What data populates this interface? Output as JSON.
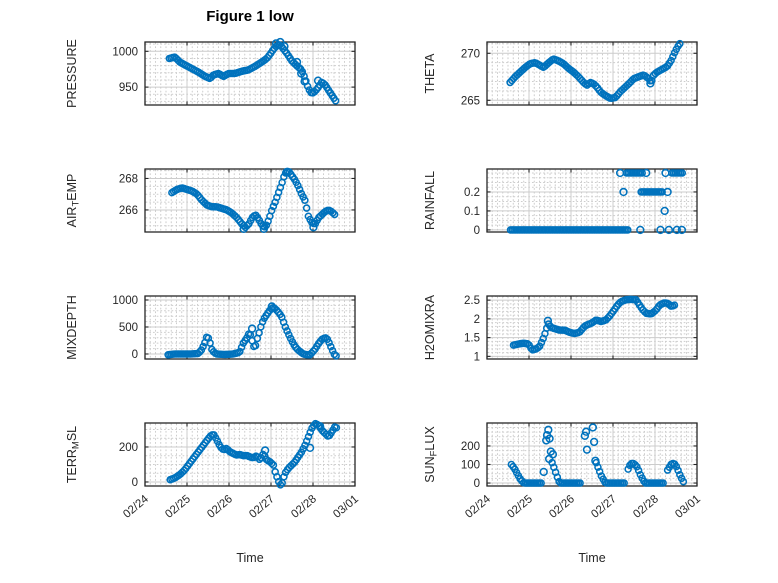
{
  "title": "Figure 1 low",
  "time_axis_label": "Time",
  "marker": {
    "shape": "circle-outline",
    "color": "#0072BD"
  },
  "grid": {
    "major_color": "#cccccc",
    "minor_color": "#cccccc",
    "axis_color": "#262626"
  },
  "x_axis": {
    "tick_labels": [
      "02/24",
      "02/25",
      "02/26",
      "02/27",
      "02/28",
      "03/01"
    ],
    "tick_days": [
      0,
      1,
      2,
      3,
      4,
      5
    ],
    "range_days": [
      0,
      5
    ],
    "minor_step_days": 0.125,
    "label": "Time"
  },
  "chart_data": [
    {
      "type": "scatter",
      "name": "PRESSURE",
      "col": 0,
      "row": 0,
      "label_parts": [
        {
          "t": "PRESSURE"
        }
      ],
      "ylim": [
        925,
        1013
      ],
      "yminor_step": 10,
      "yticks": [
        {
          "v": 950,
          "label": "950"
        },
        {
          "v": 1000,
          "label": "1000"
        }
      ],
      "segments": [
        {
          "x": [
            0.58,
            0.71,
            0.83,
            0.95,
            1.11,
            1.27,
            1.43,
            1.55,
            1.63,
            1.75,
            1.87,
            1.99,
            2.14,
            2.3,
            2.46,
            2.62,
            2.78,
            2.9,
            2.98,
            3.06,
            3.14,
            3.22,
            3.3,
            3.38,
            3.49,
            3.61,
            3.73,
            3.81,
            3.89,
            3.97,
            4.05,
            4.13,
            4.21,
            4.29,
            4.4,
            4.48,
            4.56
          ],
          "y": [
            990,
            992,
            985,
            981,
            976,
            971,
            965,
            962,
            967,
            969,
            965,
            969,
            969,
            972,
            974,
            979,
            985,
            990,
            996,
            1003,
            1008,
            1009,
            1003,
            997,
            987,
            980,
            974,
            962,
            948,
            941,
            944,
            950,
            957,
            953,
            943,
            936,
            929
          ]
        }
      ],
      "extra_points": [
        [
          3.12,
          1011
        ],
        [
          3.22,
          1013
        ],
        [
          3.32,
          1007
        ],
        [
          3.62,
          985
        ],
        [
          3.72,
          969
        ],
        [
          3.8,
          958
        ],
        [
          4.12,
          959
        ]
      ]
    },
    {
      "type": "scatter",
      "name": "THETA",
      "col": 1,
      "row": 0,
      "label_parts": [
        {
          "t": "THETA"
        }
      ],
      "ylim": [
        264.5,
        271.2
      ],
      "yminor_step": 1,
      "yticks": [
        {
          "v": 265,
          "label": "265"
        },
        {
          "v": 270,
          "label": "270"
        }
      ],
      "segments": [
        {
          "x": [
            0.55,
            0.67,
            0.79,
            0.91,
            1.03,
            1.15,
            1.27,
            1.35,
            1.47,
            1.58,
            1.7,
            1.82,
            1.94,
            2.06,
            2.18,
            2.3,
            2.38,
            2.46,
            2.54,
            2.62,
            2.7,
            2.82,
            2.94,
            3.06,
            3.17,
            3.29,
            3.41,
            3.49,
            3.61,
            3.73,
            3.85,
            3.91,
            3.97,
            4.05,
            4.17,
            4.29,
            4.38,
            4.46,
            4.54,
            4.62
          ],
          "y": [
            266.9,
            267.5,
            268.0,
            268.5,
            268.9,
            269.0,
            268.7,
            268.5,
            269.0,
            269.4,
            269.2,
            268.9,
            268.4,
            268.0,
            267.5,
            266.9,
            266.6,
            266.9,
            266.75,
            266.4,
            265.9,
            265.5,
            265.2,
            265.3,
            265.9,
            266.4,
            266.9,
            267.3,
            267.5,
            267.7,
            267.3,
            266.9,
            267.7,
            268.0,
            268.3,
            268.6,
            269.2,
            270.0,
            270.7,
            271.2
          ]
        }
      ],
      "extra_points": [
        [
          3.89,
          266.8
        ]
      ]
    },
    {
      "type": "scatter",
      "name": "AIR_TEMP",
      "col": 0,
      "row": 1,
      "label_parts": [
        {
          "t": "AIR"
        },
        {
          "t": "T",
          "sub": true
        },
        {
          "t": "EMP"
        }
      ],
      "ylim": [
        264.6,
        268.6
      ],
      "yminor_step": 0.5,
      "yticks": [
        {
          "v": 266,
          "label": "266"
        },
        {
          "v": 268,
          "label": "268"
        }
      ],
      "segments": [
        {
          "x": [
            0.64,
            0.76,
            0.88,
            1.0,
            1.12,
            1.24,
            1.36,
            1.48,
            1.6,
            1.71,
            1.83,
            1.95,
            2.07,
            2.19,
            2.31,
            2.39,
            2.47,
            2.55,
            2.63,
            2.71,
            2.79,
            2.87,
            2.95,
            3.02,
            3.1,
            3.18,
            3.26,
            3.33,
            3.41,
            3.49,
            3.57,
            3.65,
            3.73,
            3.81,
            3.89,
            3.97,
            4.05,
            4.13,
            4.21,
            4.29,
            4.37,
            4.44,
            4.52
          ],
          "y": [
            267.1,
            267.3,
            267.4,
            267.3,
            267.2,
            267.0,
            266.6,
            266.3,
            266.2,
            266.2,
            266.1,
            266.0,
            265.8,
            265.5,
            265.1,
            264.9,
            265.1,
            265.5,
            265.7,
            265.4,
            265.0,
            264.9,
            265.4,
            266.0,
            266.5,
            267.1,
            267.7,
            268.3,
            268.5,
            268.2,
            267.9,
            267.5,
            267.0,
            266.6,
            265.6,
            265.2,
            265.1,
            265.5,
            265.7,
            265.9,
            266.0,
            265.9,
            265.7
          ]
        }
      ],
      "extra_points": [
        [
          2.35,
          264.8
        ],
        [
          2.83,
          264.8
        ],
        [
          3.37,
          268.4
        ],
        [
          4.01,
          264.9
        ]
      ]
    },
    {
      "type": "scatter",
      "name": "RAINFALL",
      "col": 1,
      "row": 1,
      "label_parts": [
        {
          "t": "RAINFALL"
        }
      ],
      "ylim": [
        -0.011,
        0.321
      ],
      "yminor_step": 0.025,
      "yticks": [
        {
          "v": 0,
          "label": "0"
        },
        {
          "v": 0.1,
          "label": "0.1"
        },
        {
          "v": 0.2,
          "label": "0.2"
        }
      ],
      "segments": [
        {
          "x": [
            0.56,
            3.37
          ],
          "y": [
            0,
            0
          ]
        },
        {
          "x": [
            3.32,
            3.73
          ],
          "y": [
            0.3,
            0.3
          ]
        },
        {
          "x": [
            4.4,
            4.66
          ],
          "y": [
            0.3,
            0.3
          ]
        },
        {
          "x": [
            3.67,
            4.19
          ],
          "y": [
            0.2,
            0.2
          ]
        }
      ],
      "extra_points": [
        [
          3.17,
          0.3
        ],
        [
          3.79,
          0.3
        ],
        [
          4.25,
          0.3
        ],
        [
          3.25,
          0.2
        ],
        [
          4.3,
          0.2
        ],
        [
          4.23,
          0.1
        ],
        [
          3.65,
          0
        ],
        [
          4.13,
          0
        ],
        [
          4.33,
          0
        ],
        [
          4.52,
          0
        ],
        [
          4.64,
          0
        ]
      ]
    },
    {
      "type": "scatter",
      "name": "MIXDEPTH",
      "col": 0,
      "row": 2,
      "label_parts": [
        {
          "t": "MIXDEPTH"
        }
      ],
      "ylim": [
        -93,
        1074
      ],
      "yminor_step": 100,
      "yticks": [
        {
          "v": 0,
          "label": "0"
        },
        {
          "v": 500,
          "label": "500"
        },
        {
          "v": 1000,
          "label": "1000"
        }
      ],
      "segments": [
        {
          "x": [
            0.55,
            0.7,
            0.9,
            1.1,
            1.27,
            1.35,
            1.42,
            1.48,
            1.53,
            1.6,
            1.7,
            1.9,
            2.1,
            2.25,
            2.34,
            2.42,
            2.48,
            2.52,
            2.58,
            2.62,
            2.66,
            2.72,
            2.78,
            2.83,
            2.9,
            2.96,
            3.04,
            3.1,
            3.17,
            3.25,
            3.33,
            3.41,
            3.49,
            3.57,
            3.65,
            3.77,
            3.85,
            3.93,
            4.05,
            4.13,
            4.21,
            4.29,
            4.33,
            4.39,
            4.45,
            4.51,
            4.56
          ],
          "y": [
            -15,
            0,
            0,
            0,
            10,
            80,
            200,
            340,
            260,
            60,
            0,
            -10,
            0,
            30,
            200,
            290,
            390,
            340,
            150,
            110,
            250,
            400,
            560,
            650,
            730,
            800,
            860,
            840,
            780,
            700,
            520,
            380,
            250,
            140,
            70,
            0,
            -15,
            -15,
            90,
            190,
            270,
            300,
            290,
            200,
            90,
            -10,
            -40
          ]
        }
      ],
      "extra_points": [
        [
          2.55,
          470
        ],
        [
          3.02,
          880
        ]
      ]
    },
    {
      "type": "scatter",
      "name": "H2OMIXRA",
      "col": 1,
      "row": 2,
      "label_parts": [
        {
          "t": "H2OMIXRA"
        }
      ],
      "ylim": [
        0.93,
        2.61
      ],
      "yminor_step": 0.1,
      "yticks": [
        {
          "v": 1,
          "label": "1"
        },
        {
          "v": 1.5,
          "label": "1.5"
        },
        {
          "v": 2,
          "label": "2"
        },
        {
          "v": 2.5,
          "label": "2.5"
        }
      ],
      "segments": [
        {
          "x": [
            0.63,
            0.75,
            0.87,
            0.99,
            1.07,
            1.17,
            1.25,
            1.33,
            1.41,
            1.45,
            1.53,
            1.61,
            1.73,
            1.85,
            1.97,
            2.08,
            2.2,
            2.32,
            2.4,
            2.48,
            2.6,
            2.72,
            2.83,
            2.91,
            3.03,
            3.11,
            3.19,
            3.31,
            3.43,
            3.55,
            3.63,
            3.71,
            3.79,
            3.91,
            4.03,
            4.11,
            4.23,
            4.31,
            4.39,
            4.47
          ],
          "y": [
            1.3,
            1.33,
            1.35,
            1.33,
            1.17,
            1.2,
            1.26,
            1.45,
            1.7,
            1.88,
            1.77,
            1.74,
            1.7,
            1.7,
            1.64,
            1.61,
            1.64,
            1.8,
            1.85,
            1.88,
            1.97,
            1.93,
            1.97,
            2.06,
            2.24,
            2.37,
            2.46,
            2.51,
            2.52,
            2.51,
            2.37,
            2.24,
            2.15,
            2.13,
            2.24,
            2.37,
            2.43,
            2.41,
            2.33,
            2.37
          ]
        }
      ],
      "extra_points": [
        [
          1.45,
          1.95
        ]
      ]
    },
    {
      "type": "scatter",
      "name": "TERR_MSL",
      "col": 0,
      "row": 3,
      "label_parts": [
        {
          "t": "TERR"
        },
        {
          "t": "M",
          "sub": true
        },
        {
          "t": "SL"
        }
      ],
      "ylim": [
        -23,
        337
      ],
      "yminor_step": 50,
      "yticks": [
        {
          "v": 0,
          "label": "0"
        },
        {
          "v": 200,
          "label": "200"
        }
      ],
      "segments": [
        {
          "x": [
            0.6,
            0.71,
            0.83,
            0.95,
            1.07,
            1.19,
            1.31,
            1.43,
            1.55,
            1.63,
            1.71,
            1.79,
            1.87,
            1.94,
            2.02,
            2.1,
            2.18,
            2.26,
            2.34,
            2.42,
            2.5,
            2.58,
            2.66,
            2.74,
            2.82,
            2.9,
            2.98,
            3.06,
            3.1,
            3.17,
            3.21,
            3.25,
            3.33,
            3.41,
            3.49,
            3.57,
            3.65,
            3.73,
            3.81,
            3.89,
            3.97,
            4.05,
            4.13,
            4.21,
            4.29,
            4.37,
            4.45,
            4.52,
            4.59
          ],
          "y": [
            13,
            23,
            42,
            70,
            109,
            147,
            185,
            223,
            261,
            274,
            240,
            202,
            183,
            192,
            173,
            163,
            154,
            157,
            150,
            152,
            143,
            138,
            150,
            125,
            163,
            125,
            115,
            96,
            58,
            10,
            -15,
            -19,
            48,
            77,
            96,
            115,
            144,
            172,
            210,
            258,
            306,
            334,
            325,
            296,
            277,
            258,
            287,
            315,
            306
          ]
        }
      ],
      "extra_points": [
        [
          2.86,
          180
        ],
        [
          3.93,
          195
        ],
        [
          4.17,
          318
        ]
      ]
    },
    {
      "type": "scatter",
      "name": "SUN_FLUX",
      "col": 1,
      "row": 3,
      "label_parts": [
        {
          "t": "SUN"
        },
        {
          "t": "F",
          "sub": true
        },
        {
          "t": "LUX"
        }
      ],
      "ylim": [
        -16,
        324
      ],
      "yminor_step": 25,
      "yticks": [
        {
          "v": 0,
          "label": "0"
        },
        {
          "v": 100,
          "label": "100"
        },
        {
          "v": 200,
          "label": "200"
        }
      ],
      "segments": [
        {
          "x": [
            0.58,
            0.65,
            0.72,
            0.8,
            0.88,
            1.3
          ],
          "y": [
            100,
            80,
            50,
            18,
            0,
            0
          ]
        },
        {
          "x": [
            1.55,
            1.6,
            1.66,
            1.73,
            2.25
          ],
          "y": [
            110,
            80,
            40,
            0,
            0
          ]
        },
        {
          "x": [
            2.6,
            2.66,
            2.73,
            2.82,
            3.3
          ],
          "y": [
            110,
            75,
            35,
            0,
            0
          ]
        },
        {
          "x": [
            3.36,
            3.42,
            3.5,
            3.58,
            3.66,
            3.76,
            4.22
          ],
          "y": [
            75,
            105,
            105,
            85,
            40,
            0,
            0
          ]
        },
        {
          "x": [
            4.3,
            4.38,
            4.45,
            4.52,
            4.6,
            4.68
          ],
          "y": [
            70,
            100,
            108,
            85,
            40,
            5
          ]
        }
      ],
      "extra_points": [
        [
          1.35,
          60
        ],
        [
          1.41,
          230
        ],
        [
          1.43,
          258
        ],
        [
          1.46,
          287
        ],
        [
          1.49,
          240
        ],
        [
          1.48,
          130
        ],
        [
          1.52,
          170
        ],
        [
          1.57,
          155
        ],
        [
          2.33,
          255
        ],
        [
          2.36,
          277
        ],
        [
          2.38,
          180
        ],
        [
          2.52,
          300
        ],
        [
          2.55,
          222
        ],
        [
          2.58,
          120
        ]
      ]
    }
  ]
}
